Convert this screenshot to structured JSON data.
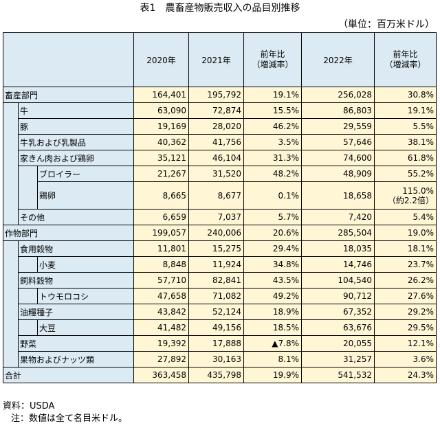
{
  "title": "表1　農畜産物販売収入の品目別推移",
  "unit": "（単位：百万米ドル）",
  "headers": {
    "y2020": "2020年",
    "y2021": "2021年",
    "yoy1": "前年比",
    "yoy1_sub": "（増減率）",
    "y2022": "2022年",
    "yoy2": "前年比",
    "yoy2_sub": "（増減率）"
  },
  "rows": [
    {
      "label": "畜産部門",
      "v2020": "164,401",
      "v2021": "195,792",
      "r1": "19.1%",
      "v2022": "256,028",
      "r2": "30.8%"
    },
    {
      "label": "牛",
      "v2020": "63,090",
      "v2021": "72,874",
      "r1": "15.5%",
      "v2022": "86,803",
      "r2": "19.1%"
    },
    {
      "label": "豚",
      "v2020": "19,169",
      "v2021": "28,020",
      "r1": "46.2%",
      "v2022": "29,559",
      "r2": "5.5%"
    },
    {
      "label": "牛乳および乳製品",
      "v2020": "40,362",
      "v2021": "41,756",
      "r1": "3.5%",
      "v2022": "57,646",
      "r2": "38.1%"
    },
    {
      "label": "家きん肉および鶏卵",
      "v2020": "35,121",
      "v2021": "46,104",
      "r1": "31.3%",
      "v2022": "74,600",
      "r2": "61.8%"
    },
    {
      "label": "ブロイラー",
      "v2020": "21,267",
      "v2021": "31,520",
      "r1": "48.2%",
      "v2022": "48,909",
      "r2": "55.2%"
    },
    {
      "label": "鶏卵",
      "v2020": "8,665",
      "v2021": "8,677",
      "r1": "0.1%",
      "v2022": "18,658",
      "r2": "115.0%",
      "r2b": "（約2.2倍）"
    },
    {
      "label": "その他",
      "v2020": "6,659",
      "v2021": "7,037",
      "r1": "5.7%",
      "v2022": "7,420",
      "r2": "5.4%"
    },
    {
      "label": "作物部門",
      "v2020": "199,057",
      "v2021": "240,006",
      "r1": "20.6%",
      "v2022": "285,504",
      "r2": "19.0%"
    },
    {
      "label": "食用穀物",
      "v2020": "11,801",
      "v2021": "15,275",
      "r1": "29.4%",
      "v2022": "18,035",
      "r2": "18.1%"
    },
    {
      "label": "小麦",
      "v2020": "8,848",
      "v2021": "11,924",
      "r1": "34.8%",
      "v2022": "14,746",
      "r2": "23.7%"
    },
    {
      "label": "飼料穀物",
      "v2020": "57,710",
      "v2021": "82,841",
      "r1": "43.5%",
      "v2022": "104,540",
      "r2": "26.2%"
    },
    {
      "label": "トウモロコシ",
      "v2020": "47,658",
      "v2021": "71,082",
      "r1": "49.2%",
      "v2022": "90,712",
      "r2": "27.6%"
    },
    {
      "label": "油糧種子",
      "v2020": "43,842",
      "v2021": "52,124",
      "r1": "18.9%",
      "v2022": "67,352",
      "r2": "29.2%"
    },
    {
      "label": "大豆",
      "v2020": "41,482",
      "v2021": "49,156",
      "r1": "18.5%",
      "v2022": "63,676",
      "r2": "29.5%"
    },
    {
      "label": "野菜",
      "v2020": "19,392",
      "v2021": "17,888",
      "r1": "▲7.8%",
      "v2022": "20,055",
      "r2": "12.1%"
    },
    {
      "label": "果物およびナッツ類",
      "v2020": "27,892",
      "v2021": "30,163",
      "r1": "8.1%",
      "v2022": "31,257",
      "r2": "3.6%"
    },
    {
      "label": "合計",
      "v2020": "363,458",
      "v2021": "435,798",
      "r1": "19.9%",
      "v2022": "541,532",
      "r2": "24.3%"
    }
  ],
  "notes": {
    "source": "資料：USDA",
    "note": "注：数値は全て名目米ドル。"
  }
}
